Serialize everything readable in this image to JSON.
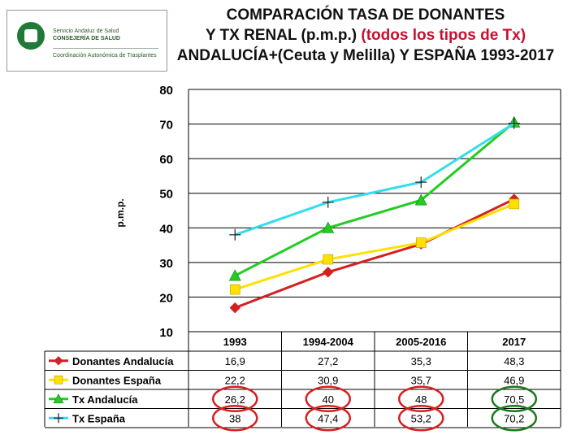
{
  "logo": {
    "lines": [
      "Servicio Andaluz de Salud",
      "CONSEJERÍA DE SALUD",
      "Coordinación Autonómica de Trasplantes"
    ]
  },
  "title": {
    "line1": "COMPARACIÓN TASA DE DONANTES",
    "line2_a": "Y TX RENAL (p.m.p.) ",
    "line2_b": "(todos los tipos de Tx)",
    "line3": "ANDALUCÍA+(Ceuta y Melilla) Y ESPAÑA 1993-2017"
  },
  "chart_data": {
    "type": "line",
    "ylabel": "p.m.p.",
    "ylim": [
      10,
      80
    ],
    "yticks": [
      "80",
      "70",
      "60",
      "50",
      "40",
      "30",
      "20",
      "10"
    ],
    "categories": [
      "1993",
      "1994-2004",
      "2005-2016",
      "2017"
    ],
    "grid": true,
    "series": [
      {
        "name": "Donantes Andalucía",
        "color": "#d42020",
        "marker": "diamond",
        "values": [
          16.9,
          27.2,
          35.3,
          48.3
        ],
        "labels": [
          "16,9",
          "27,2",
          "35,3",
          "48,3"
        ]
      },
      {
        "name": "Donantes España",
        "color": "#ffe000",
        "marker": "square",
        "values": [
          22.2,
          30.9,
          35.7,
          46.9
        ],
        "labels": [
          "22,2",
          "30,9",
          "35,7",
          "46,9"
        ]
      },
      {
        "name": "Tx Andalucía",
        "color": "#22cc22",
        "marker": "triangle",
        "values": [
          26.2,
          40,
          48,
          70.5
        ],
        "labels": [
          "26,2",
          "40",
          "48",
          "70,5"
        ]
      },
      {
        "name": "Tx España",
        "color": "#33ddee",
        "marker": "plus",
        "values": [
          38,
          47.4,
          53.2,
          70.2
        ],
        "labels": [
          "38",
          "47,4",
          "53,2",
          "70,2"
        ]
      }
    ],
    "highlight_circles": [
      {
        "row": 2,
        "col": 0,
        "color": "#d62020"
      },
      {
        "row": 3,
        "col": 0,
        "color": "#d62020"
      },
      {
        "row": 2,
        "col": 1,
        "color": "#d62020"
      },
      {
        "row": 3,
        "col": 1,
        "color": "#d62020"
      },
      {
        "row": 2,
        "col": 2,
        "color": "#d62020"
      },
      {
        "row": 3,
        "col": 2,
        "color": "#d62020"
      },
      {
        "row": 2,
        "col": 3,
        "color": "#1a7a1a"
      },
      {
        "row": 3,
        "col": 3,
        "color": "#1a7a1a"
      }
    ]
  }
}
